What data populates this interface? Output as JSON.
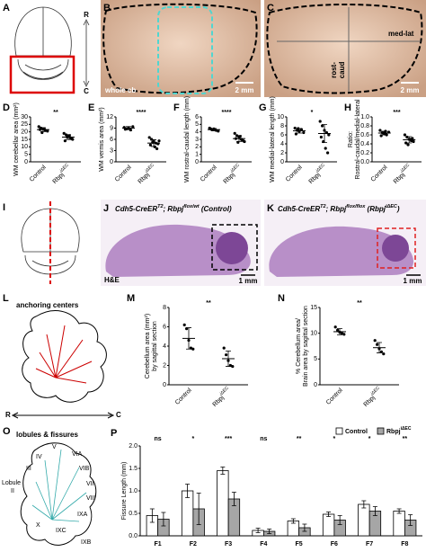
{
  "figure": {
    "A": {
      "letter": "A",
      "rostral": "R",
      "caudal": "C"
    },
    "B": {
      "letter": "B",
      "label": "whole cb",
      "scale": "2 mm"
    },
    "C": {
      "letter": "C",
      "medlat": "med-lat",
      "rostcaud": [
        "rost-",
        "caud"
      ],
      "scale": "2 mm"
    },
    "I": {
      "letter": "I"
    },
    "J": {
      "letter": "J",
      "title": [
        "Cdh5-CreER",
        "T2",
        "; Rbpj",
        "flox/wt",
        " (Control)"
      ],
      "stain": "H&E",
      "scale": "1 mm"
    },
    "K": {
      "letter": "K",
      "title": [
        "Cdh5-CreER",
        "T2",
        "; Rbpj",
        "flox/flox",
        " (Rbpj",
        "iΔEC",
        ")"
      ],
      "scale": "1 mm"
    },
    "L": {
      "letter": "L",
      "title": "anchoring centers",
      "rostral": "R",
      "caudal": "C"
    },
    "O": {
      "letter": "O",
      "title": "lobules & fissures",
      "lobules": [
        "V",
        "IV",
        "VIA",
        "III",
        "VIB",
        "Lobule",
        "II",
        "VII",
        "VIII",
        "IXA",
        "X",
        "IXC",
        "IXB"
      ]
    }
  },
  "chart_data": [
    {
      "type": "dot",
      "panel": "D",
      "sig": "**",
      "ylabel": [
        "WM cerebellar area (mm²)"
      ],
      "ylim": [
        0,
        30
      ],
      "yticks": [
        0,
        5,
        10,
        15,
        20,
        25,
        30
      ],
      "series": [
        {
          "name": "Control",
          "color": "#000000",
          "values": [
            23.5,
            22.5,
            22,
            21,
            20.5,
            21.5,
            19.5,
            22
          ],
          "mean": 21.5,
          "error": 1.3
        },
        {
          "name": "Rbpj",
          "name_sup": "iΔEC",
          "color": "#000000",
          "values": [
            19,
            18,
            17,
            16,
            15,
            14,
            16.5,
            17.5,
            15.5
          ],
          "mean": 16.5,
          "error": 1.6
        }
      ]
    },
    {
      "type": "dot",
      "panel": "E",
      "sig": "****",
      "ylabel": [
        "WM vermis area (mm²)"
      ],
      "ylim": [
        0,
        12
      ],
      "yticks": [
        0,
        3,
        6,
        9,
        12
      ],
      "series": [
        {
          "name": "Control",
          "color": "#000000",
          "values": [
            9.2,
            8.8,
            9,
            8.5,
            9.4,
            8.7
          ],
          "mean": 9,
          "error": 0.4
        },
        {
          "name": "Rbpj",
          "name_sup": "iΔEC",
          "color": "#000000",
          "values": [
            6.5,
            6,
            5.5,
            5,
            4.8,
            4.5,
            5.2,
            4,
            3.5,
            5.6
          ],
          "mean": 5,
          "error": 0.9
        }
      ]
    },
    {
      "type": "dot",
      "panel": "F",
      "sig": "****",
      "ylabel": [
        "WM rostral-caudal length (mm)"
      ],
      "ylim": [
        0,
        6
      ],
      "yticks": [
        0,
        1,
        2,
        3,
        4,
        5,
        6
      ],
      "series": [
        {
          "name": "Control",
          "color": "#000000",
          "values": [
            4.5,
            4.3,
            4.4,
            4.2,
            4.1,
            4.4,
            4.3
          ],
          "mean": 4.3,
          "error": 0.15
        },
        {
          "name": "Rbpj",
          "name_sup": "iΔEC",
          "color": "#000000",
          "values": [
            3.8,
            3.5,
            3.3,
            3.0,
            2.8,
            3.1,
            2.6,
            3.4,
            2.9,
            2.7
          ],
          "mean": 3.1,
          "error": 0.4
        }
      ]
    },
    {
      "type": "dot",
      "panel": "G",
      "sig": "*",
      "ylabel": [
        "WM medial-lateral length (mm)"
      ],
      "ylim": [
        0,
        10
      ],
      "yticks": [
        0,
        2,
        4,
        6,
        8,
        10
      ],
      "series": [
        {
          "name": "Control",
          "color": "#000000",
          "values": [
            7.5,
            7,
            6.8,
            7.2,
            6.5,
            6.2,
            7.4
          ],
          "mean": 6.9,
          "error": 0.5
        },
        {
          "name": "Rbpj",
          "name_sup": "iΔEC",
          "color": "#000000",
          "values": [
            9,
            8,
            7,
            6.5,
            6,
            5.5,
            4.5,
            3,
            2
          ],
          "mean": 6.3,
          "error": 2.0
        }
      ]
    },
    {
      "type": "dot",
      "panel": "H",
      "sig": "***",
      "ylabel": [
        "Ratio:",
        "Rostral-caudal/medial-lateral"
      ],
      "ylim": [
        0,
        1
      ],
      "yticks": [
        {
          "value": 0,
          "label": "0.0"
        },
        0.2,
        0.4,
        0.6,
        0.8,
        {
          "value": 1,
          "label": "1.0"
        }
      ],
      "series": [
        {
          "name": "Control",
          "color": "#000000",
          "values": [
            0.7,
            0.65,
            0.62,
            0.6,
            0.66,
            0.58,
            0.64,
            0.68
          ],
          "mean": 0.64,
          "error": 0.04
        },
        {
          "name": "Rbpj",
          "name_sup": "iΔEC",
          "color": "#000000",
          "values": [
            0.6,
            0.55,
            0.5,
            0.47,
            0.45,
            0.42,
            0.38,
            0.5,
            0.52
          ],
          "mean": 0.49,
          "error": 0.07
        }
      ]
    },
    {
      "type": "dot",
      "panel": "M",
      "sig": "**",
      "ylabel": [
        "Cerebellum area (mm²)",
        "by sagittal section"
      ],
      "ylim": [
        0,
        8
      ],
      "yticks": [
        0,
        2,
        4,
        6,
        8
      ],
      "series": [
        {
          "name": "Control",
          "color": "#000000",
          "values": [
            6.2,
            5.8,
            4.6,
            3.8,
            3.7
          ],
          "mean": 4.8,
          "error": 1.1
        },
        {
          "name": "Rbpj",
          "name_sup": "iΔEC",
          "color": "#000000",
          "values": [
            3.8,
            3.1,
            2.5,
            2.0,
            1.9
          ],
          "mean": 2.7,
          "error": 0.8
        }
      ]
    },
    {
      "type": "dot",
      "panel": "N",
      "sig": "**",
      "ylabel": [
        "% Cerebellum area/",
        "Brain area by sagittal section"
      ],
      "ylim": [
        0,
        15
      ],
      "yticks": [
        0,
        5,
        10,
        15
      ],
      "series": [
        {
          "name": "Control",
          "color": "#000000",
          "values": [
            11.2,
            10.6,
            10.2,
            10,
            9.8
          ],
          "mean": 10.3,
          "error": 0.6
        },
        {
          "name": "Rbpj",
          "name_sup": "iΔEC",
          "color": "#000000",
          "values": [
            8.6,
            7.8,
            7,
            6.4,
            6
          ],
          "mean": 7.2,
          "error": 1.0
        }
      ]
    },
    {
      "type": "bar",
      "panel": "P",
      "ylabel": [
        "Fissure Length (mm)"
      ],
      "ylim": [
        0,
        2
      ],
      "yticks": [
        {
          "value": 0,
          "label": "0.0"
        },
        0.5,
        {
          "value": 1,
          "label": "1.0"
        },
        1.5,
        {
          "value": 2,
          "label": "2.0"
        }
      ],
      "categories": [
        "F1",
        "F2",
        "F3",
        "F4",
        "F5",
        "F6",
        "F7",
        "F8"
      ],
      "sig": [
        "ns",
        "*",
        "***",
        "ns",
        "**",
        "*",
        "*",
        "**"
      ],
      "series": [
        {
          "name": "Control",
          "color": "#ffffff",
          "values": [
            0.45,
            1.0,
            1.45,
            0.12,
            0.33,
            0.48,
            0.7,
            0.55
          ],
          "errors": [
            0.15,
            0.15,
            0.08,
            0.05,
            0.05,
            0.05,
            0.08,
            0.05
          ]
        },
        {
          "name": "Rbpj",
          "name_sup": "iΔEC",
          "color": "#a6a6a6",
          "values": [
            0.37,
            0.6,
            0.82,
            0.1,
            0.18,
            0.35,
            0.55,
            0.35
          ],
          "errors": [
            0.15,
            0.35,
            0.15,
            0.05,
            0.08,
            0.1,
            0.1,
            0.12
          ]
        }
      ]
    }
  ]
}
